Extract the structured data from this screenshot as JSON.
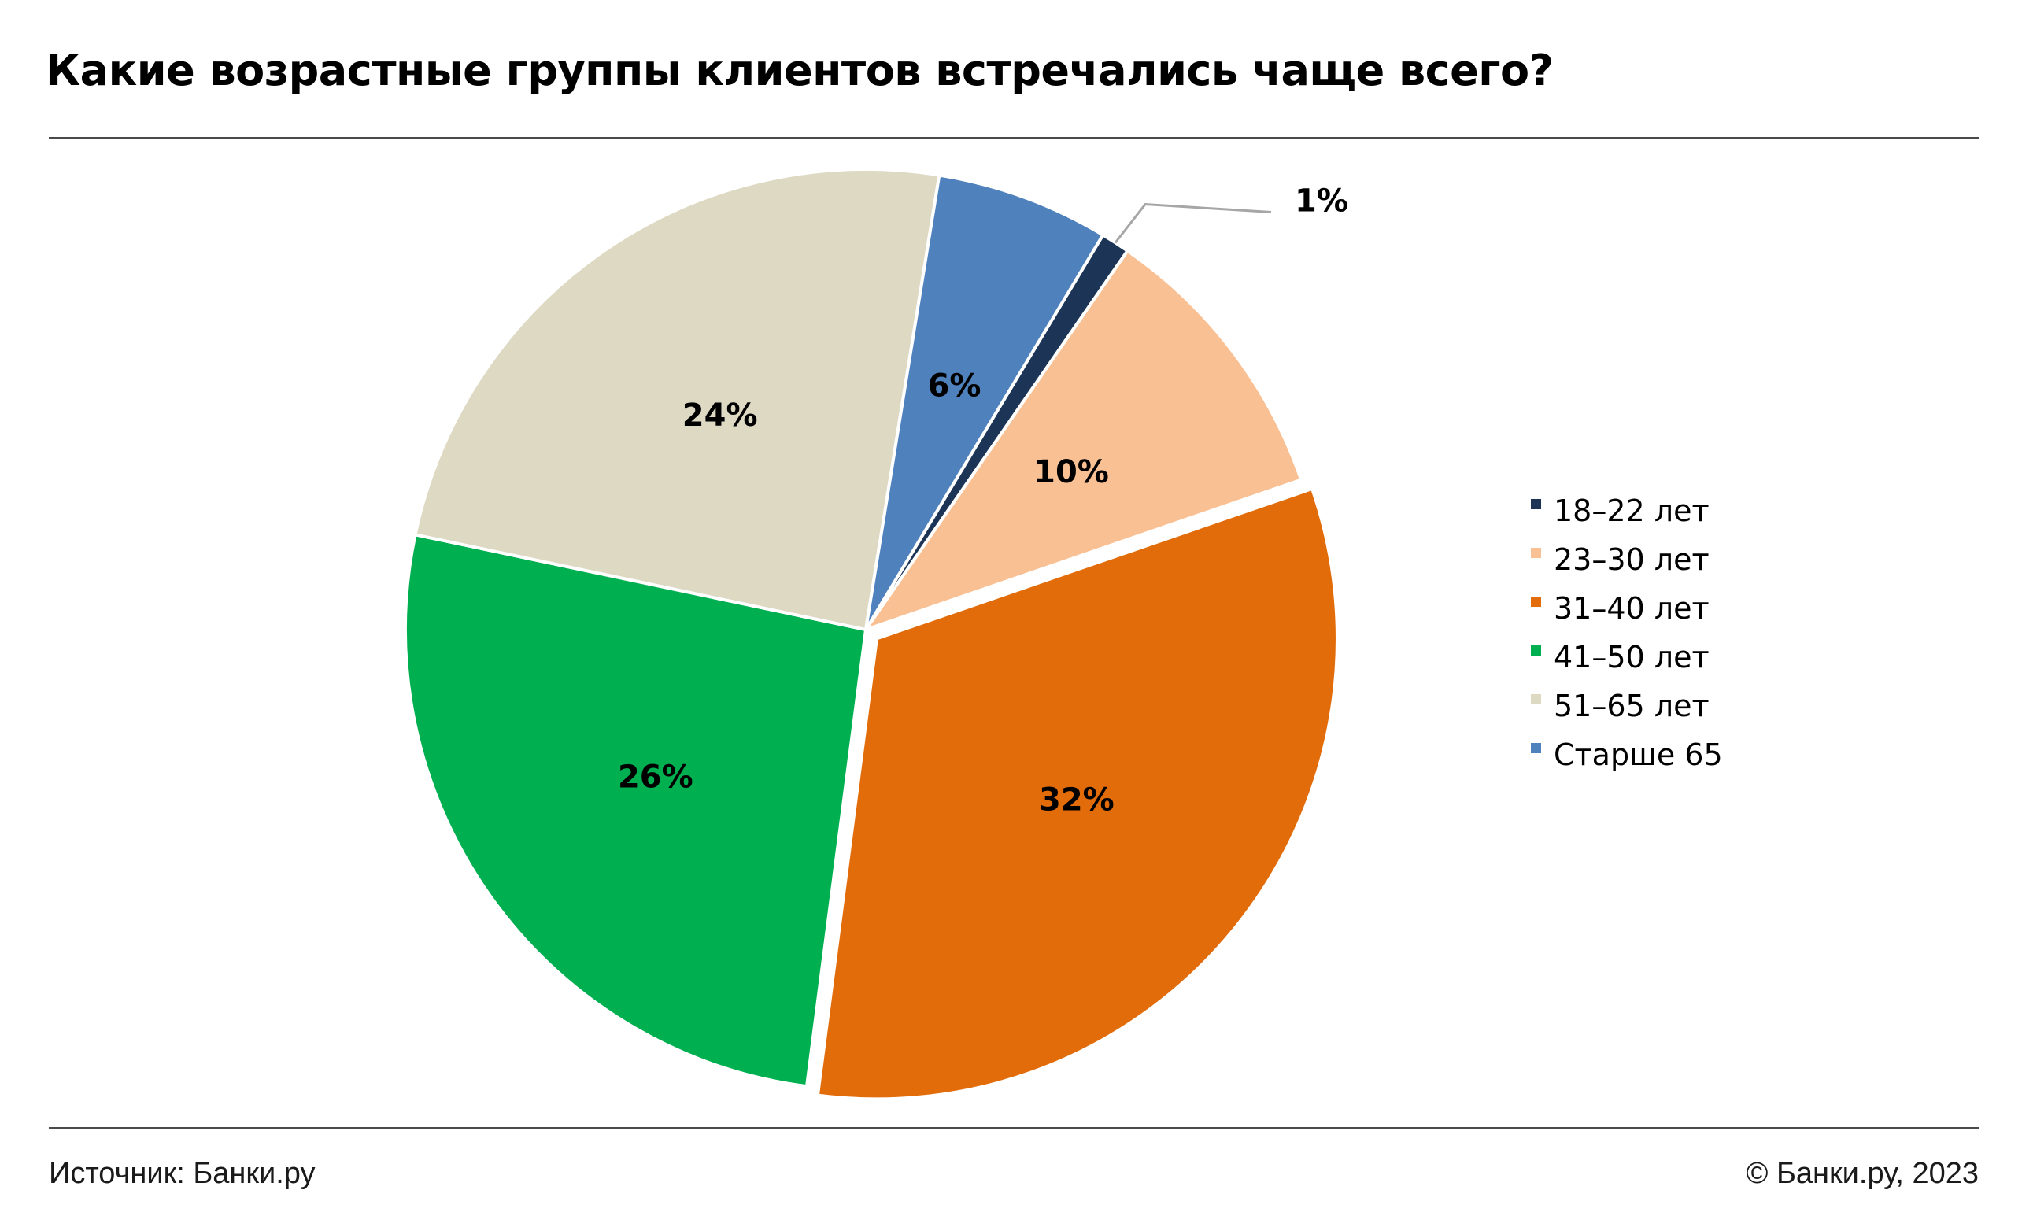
{
  "header": {
    "title": "Какие возрастные группы клиентов встречались чаще всего?"
  },
  "footer": {
    "source": "Источник: Банки.ру",
    "copyright": "© Банки.ру, 2023"
  },
  "chart_data": {
    "type": "pie",
    "title": "Какие возрастные группы клиентов встречались чаще всего?",
    "legend_position": "right",
    "exploded_slice": "31–40 лет",
    "slices": [
      {
        "label": "18–22 лет",
        "value": 1,
        "display": "1%",
        "color": "#1c3557"
      },
      {
        "label": "23–30 лет",
        "value": 10,
        "display": "10%",
        "color": "#f9c093"
      },
      {
        "label": "31–40 лет",
        "value": 32,
        "display": "32%",
        "color": "#e36c0a"
      },
      {
        "label": "41–50 лет",
        "value": 26,
        "display": "26%",
        "color": "#00b050"
      },
      {
        "label": "51–65 лет",
        "value": 24,
        "display": "24%",
        "color": "#ddd9c3"
      },
      {
        "label": "Старше 65",
        "value": 6,
        "display": "6%",
        "color": "#4f81bd"
      }
    ]
  }
}
